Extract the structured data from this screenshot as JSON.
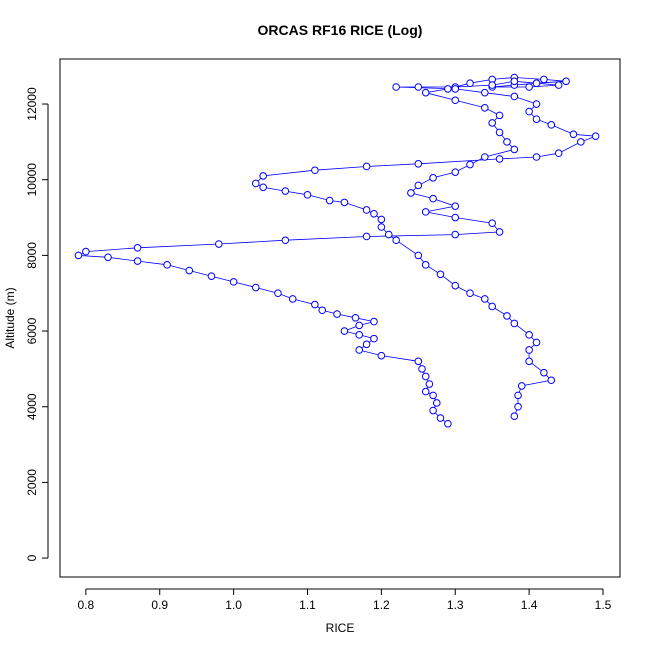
{
  "chart_data": {
    "type": "scatter-line",
    "title": "ORCAS RF16 RICE (Log)",
    "x_label": "RICE",
    "y_label": "Altitude (m)",
    "xlim": [
      0.765,
      1.523
    ],
    "ylim": [
      -500,
      13190
    ],
    "xticks": [
      0.8,
      0.9,
      {
        "value": 1,
        "label": "1.0"
      },
      1.1,
      1.2,
      1.3,
      1.4,
      1.5
    ],
    "yticks": [
      0,
      2000,
      4000,
      6000,
      8000,
      10000,
      12000
    ],
    "series": [
      {
        "color": "#0000ff",
        "x": [
          1.29,
          1.28,
          1.27,
          1.275,
          1.27,
          1.26,
          1.265,
          1.26,
          1.255,
          1.25,
          1.2,
          1.17,
          1.18,
          1.19,
          1.17,
          1.15,
          1.17,
          1.19,
          1.165,
          1.14,
          1.12,
          1.11,
          1.08,
          1.06,
          1.03,
          1.0,
          0.97,
          0.94,
          0.91,
          0.87,
          0.83,
          0.79,
          0.8,
          0.87,
          0.98,
          1.07,
          1.18,
          1.3,
          1.36,
          1.35,
          1.3,
          1.26,
          1.3,
          1.27,
          1.24,
          1.25,
          1.27,
          1.3,
          1.32,
          1.34,
          1.38,
          1.37,
          1.36,
          1.35,
          1.36,
          1.34,
          1.3,
          1.26,
          1.29,
          1.32,
          1.35,
          1.38,
          1.42,
          1.45,
          1.41,
          1.38,
          1.35,
          1.4,
          1.44,
          1.41,
          1.38,
          1.35,
          1.3,
          1.25,
          1.22,
          1.3,
          1.34,
          1.38,
          1.41,
          1.4,
          1.41,
          1.43,
          1.46,
          1.49,
          1.47,
          1.44,
          1.41,
          1.36,
          1.25,
          1.18,
          1.11,
          1.04,
          1.03,
          1.04,
          1.07,
          1.1,
          1.13,
          1.15,
          1.18,
          1.19,
          1.2,
          1.2,
          1.21,
          1.22,
          1.25,
          1.26,
          1.28,
          1.3,
          1.32,
          1.34,
          1.35,
          1.37,
          1.38,
          1.4,
          1.41,
          1.4,
          1.4,
          1.42,
          1.43,
          1.39,
          1.385,
          1.385,
          1.38
        ],
        "values": [
          3550,
          3700,
          3900,
          4100,
          4300,
          4400,
          4600,
          4800,
          5000,
          5200,
          5350,
          5500,
          5650,
          5800,
          5900,
          6000,
          6150,
          6250,
          6350,
          6450,
          6550,
          6700,
          6850,
          7000,
          7150,
          7300,
          7450,
          7600,
          7750,
          7850,
          7950,
          8000,
          8100,
          8200,
          8300,
          8400,
          8500,
          8550,
          8620,
          8850,
          9000,
          9150,
          9300,
          9500,
          9650,
          9850,
          10050,
          10200,
          10400,
          10600,
          10800,
          11000,
          11250,
          11500,
          11700,
          11900,
          12100,
          12300,
          12400,
          12550,
          12650,
          12700,
          12650,
          12600,
          12550,
          12500,
          12450,
          12450,
          12500,
          12550,
          12600,
          12500,
          12450,
          12450,
          12450,
          12400,
          12300,
          12200,
          12000,
          11800,
          11600,
          11450,
          11200,
          11150,
          11000,
          10700,
          10600,
          10550,
          10420,
          10350,
          10250,
          10100,
          9900,
          9800,
          9700,
          9600,
          9450,
          9400,
          9200,
          9100,
          8950,
          8750,
          8550,
          8400,
          8000,
          7750,
          7500,
          7200,
          7000,
          6850,
          6650,
          6400,
          6200,
          5900,
          5700,
          5500,
          5200,
          4900,
          4700,
          4550,
          4300,
          4000,
          3750
        ]
      }
    ]
  }
}
